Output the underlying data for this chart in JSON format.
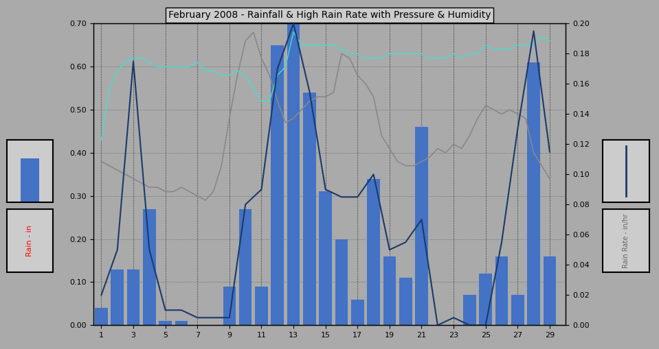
{
  "title": "February 2008 - Rainfall & High Rain Rate with Pressure & Humidity",
  "background_color": "#aaaaaa",
  "plot_bg_color": "#aaaaaa",
  "xlabel": "",
  "ylabel_left": "Rain - in",
  "ylabel_right": "Rain Rate - in/hr",
  "ylim_left": [
    0.0,
    0.7
  ],
  "ylim_right": [
    0.0,
    0.2
  ],
  "xlim": [
    0.5,
    30.0
  ],
  "xticks": [
    1,
    3,
    5,
    7,
    9,
    11,
    13,
    15,
    17,
    19,
    21,
    23,
    25,
    27,
    29
  ],
  "yticks_left": [
    0.0,
    0.1,
    0.2,
    0.3,
    0.4,
    0.5,
    0.6,
    0.7
  ],
  "yticks_right": [
    0.0,
    0.02,
    0.04,
    0.06,
    0.08,
    0.1,
    0.12,
    0.14,
    0.16,
    0.18,
    0.2
  ],
  "bar_color": "#4472c4",
  "bar_x": [
    1,
    2,
    3,
    4,
    5,
    6,
    7,
    8,
    9,
    10,
    11,
    12,
    13,
    14,
    15,
    16,
    17,
    18,
    19,
    20,
    21,
    22,
    23,
    24,
    25,
    26,
    27,
    28,
    29
  ],
  "bar_heights": [
    0.04,
    0.13,
    0.13,
    0.27,
    0.01,
    0.01,
    0.0,
    0.0,
    0.09,
    0.27,
    0.09,
    0.65,
    0.7,
    0.54,
    0.31,
    0.2,
    0.06,
    0.34,
    0.16,
    0.11,
    0.46,
    0.0,
    0.0,
    0.07,
    0.12,
    0.16,
    0.07,
    0.61,
    0.16
  ],
  "rain_rate_x": [
    1,
    2,
    3,
    4,
    5,
    6,
    7,
    8,
    9,
    10,
    11,
    12,
    13,
    14,
    15,
    16,
    17,
    18,
    19,
    20,
    21,
    22,
    23,
    24,
    25,
    26,
    27,
    28,
    29
  ],
  "rain_rate_y": [
    0.02,
    0.05,
    0.175,
    0.05,
    0.01,
    0.01,
    0.005,
    0.005,
    0.005,
    0.08,
    0.09,
    0.17,
    0.2,
    0.155,
    0.09,
    0.085,
    0.085,
    0.1,
    0.05,
    0.055,
    0.07,
    0.0,
    0.005,
    0.0,
    0.0,
    0.055,
    0.13,
    0.195,
    0.115
  ],
  "rain_rate_color": "#1a3a6b",
  "humidity_color": "#40e0d0",
  "pressure_color": "#888888",
  "humidity_x": [
    1,
    1.5,
    2,
    2.5,
    3,
    3.5,
    4,
    4.5,
    5,
    5.5,
    6,
    6.5,
    7,
    7.5,
    8,
    8.5,
    9,
    9.5,
    10,
    10.5,
    11,
    11.5,
    12,
    12.5,
    13,
    13.5,
    14,
    14.5,
    15,
    15.5,
    16,
    16.5,
    17,
    17.5,
    18,
    18.5,
    19,
    19.5,
    20,
    20.5,
    21,
    21.5,
    22,
    22.5,
    23,
    23.5,
    24,
    24.5,
    25,
    25.5,
    26,
    26.5,
    27,
    27.5,
    28,
    28.5,
    29
  ],
  "humidity_y": [
    0.43,
    0.55,
    0.59,
    0.61,
    0.62,
    0.62,
    0.61,
    0.6,
    0.6,
    0.6,
    0.6,
    0.6,
    0.61,
    0.59,
    0.59,
    0.58,
    0.58,
    0.59,
    0.58,
    0.55,
    0.52,
    0.52,
    0.58,
    0.6,
    0.68,
    0.65,
    0.65,
    0.65,
    0.65,
    0.65,
    0.64,
    0.63,
    0.63,
    0.62,
    0.62,
    0.62,
    0.63,
    0.63,
    0.63,
    0.63,
    0.63,
    0.62,
    0.62,
    0.62,
    0.63,
    0.62,
    0.63,
    0.63,
    0.65,
    0.64,
    0.64,
    0.64,
    0.65,
    0.65,
    0.65,
    0.67,
    0.66
  ],
  "pressure_x": [
    1,
    1.5,
    2,
    2.5,
    3,
    3.5,
    4,
    4.5,
    5,
    5.5,
    6,
    6.5,
    7,
    7.5,
    8,
    8.5,
    9,
    9.5,
    10,
    10.5,
    11,
    11.5,
    12,
    12.5,
    13,
    13.5,
    14,
    14.5,
    15,
    15.5,
    16,
    16.5,
    17,
    17.5,
    18,
    18.5,
    19,
    19.5,
    20,
    20.5,
    21,
    21.5,
    22,
    22.5,
    23,
    23.5,
    24,
    24.5,
    25,
    25.5,
    26,
    26.5,
    27,
    27.5,
    28,
    28.5,
    29
  ],
  "pressure_y": [
    0.38,
    0.37,
    0.36,
    0.35,
    0.34,
    0.33,
    0.32,
    0.32,
    0.31,
    0.31,
    0.32,
    0.31,
    0.3,
    0.29,
    0.31,
    0.37,
    0.48,
    0.58,
    0.66,
    0.68,
    0.62,
    0.58,
    0.52,
    0.47,
    0.48,
    0.5,
    0.52,
    0.53,
    0.53,
    0.54,
    0.63,
    0.62,
    0.58,
    0.56,
    0.53,
    0.44,
    0.41,
    0.38,
    0.37,
    0.37,
    0.38,
    0.39,
    0.41,
    0.4,
    0.42,
    0.41,
    0.44,
    0.48,
    0.51,
    0.5,
    0.49,
    0.5,
    0.49,
    0.48,
    0.4,
    0.37,
    0.34
  ]
}
